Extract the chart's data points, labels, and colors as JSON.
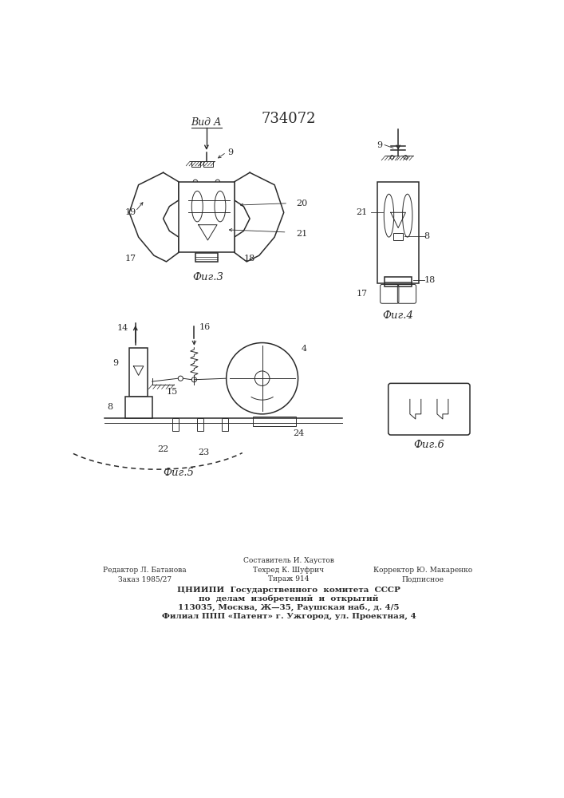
{
  "patent_number": "734072",
  "bg_color": "#ffffff",
  "line_color": "#2a2a2a",
  "footer": {
    "col1_line1": "Редактор Л. Батанова",
    "col1_line2": "Заказ 1985/27",
    "col2_line0": "Составитель И. Хаустов",
    "col2_line1": "Техред К. Шуфрич",
    "col2_line2": "Тираж 914",
    "col3_line1": "Корректор Ю. Макаренко",
    "col3_line2": "Подписное",
    "org_line1": "ЦНИИПИ  Государственного  комитета  СССР",
    "org_line2": "по  делам  изобретений  и  открытий",
    "org_line3": "113035, Москва, Ж—35, Раушская наб., д. 4/5",
    "org_line4": "Филиал ППП «Патент» г. Ужгород, ул. Проектная, 4"
  }
}
